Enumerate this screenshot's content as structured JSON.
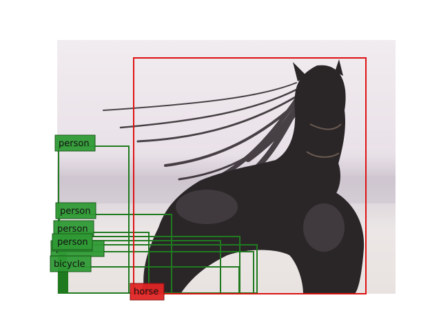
{
  "colors": {
    "person": "#1f7a1f",
    "person_label_bg": "#2f9a35",
    "bicycle": "#1f7a1f",
    "bicycle_label_bg": "#2f9a35",
    "horse": "#dd1111",
    "horse_label_bg": "#e02424"
  },
  "scene": {
    "sky_top": "#efe9ee",
    "sky_mid": "#e7dfe6",
    "sea": "#c9c1cb",
    "sand": "#ebe6e4",
    "horse_body": "#2a2628"
  },
  "detections": [
    {
      "label": "horse",
      "category": "horse"
    },
    {
      "label": "person",
      "category": "person"
    },
    {
      "label": "person",
      "category": "person"
    },
    {
      "label": "person",
      "category": "person"
    },
    {
      "label": "person",
      "category": "person"
    },
    {
      "label": "person",
      "category": "person"
    },
    {
      "label": "person",
      "category": "person"
    },
    {
      "label": "bicycle",
      "category": "bicycle"
    }
  ]
}
